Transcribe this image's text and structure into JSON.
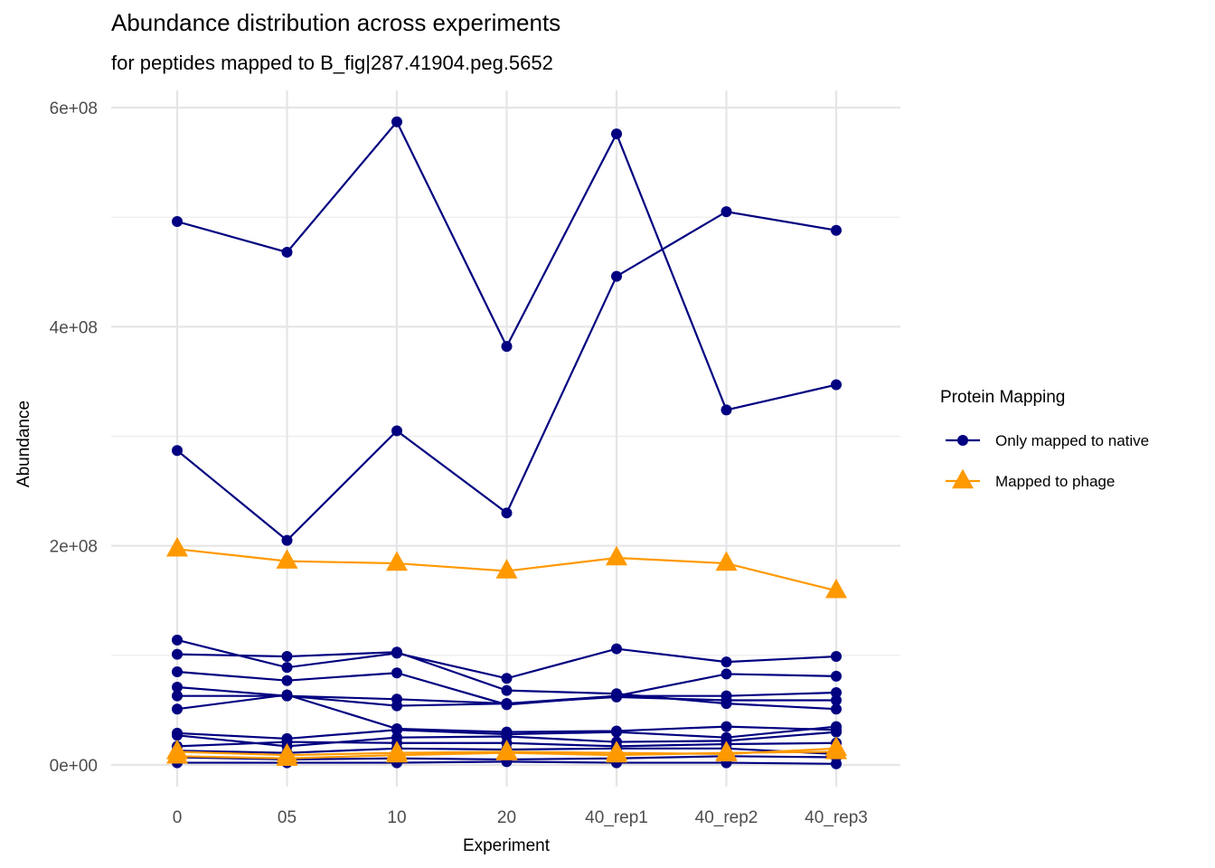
{
  "chart_data": {
    "type": "line",
    "title": "Abundance distribution across experiments",
    "subtitle": "for peptides mapped to B_fig|287.41904.peg.5652",
    "xlabel": "Experiment",
    "ylabel": "Abundance",
    "categories": [
      "0",
      "05",
      "10",
      "20",
      "40_rep1",
      "40_rep2",
      "40_rep3"
    ],
    "ylim": [
      -20000000,
      605000000
    ],
    "yticks": [
      0,
      200000000,
      400000000,
      600000000
    ],
    "ytick_labels": [
      "0e+00",
      "2e+08",
      "4e+08",
      "6e+08"
    ],
    "grid": true,
    "legend": {
      "title": "Protein Mapping",
      "position": "right",
      "entries": [
        {
          "label": "Only mapped to native",
          "color": "#000080",
          "shape": "circle"
        },
        {
          "label": "Mapped to phage",
          "color": "#FF9900",
          "shape": "triangle"
        }
      ]
    },
    "series": [
      {
        "group": "native",
        "values": [
          496000000,
          468000000,
          587000000,
          382000000,
          576000000,
          324000000,
          347000000
        ]
      },
      {
        "group": "native",
        "values": [
          287000000,
          205000000,
          305000000,
          230000000,
          446000000,
          505000000,
          488000000
        ]
      },
      {
        "group": "native",
        "values": [
          114000000,
          89000000,
          102000000,
          79000000,
          106000000,
          94000000,
          99000000
        ]
      },
      {
        "group": "native",
        "values": [
          101000000,
          99000000,
          103000000,
          68000000,
          65000000,
          56000000,
          51000000
        ]
      },
      {
        "group": "native",
        "values": [
          85000000,
          77000000,
          84000000,
          55000000,
          63000000,
          83000000,
          81000000
        ]
      },
      {
        "group": "native",
        "values": [
          71000000,
          63000000,
          54000000,
          56000000,
          63000000,
          63000000,
          66000000
        ]
      },
      {
        "group": "native",
        "values": [
          63000000,
          63000000,
          60000000,
          56000000,
          62000000,
          59000000,
          59000000
        ]
      },
      {
        "group": "native",
        "values": [
          51000000,
          64000000,
          33000000,
          30000000,
          31000000,
          35000000,
          32000000
        ]
      },
      {
        "group": "native",
        "values": [
          29000000,
          24000000,
          32000000,
          28000000,
          30000000,
          25000000,
          35000000
        ]
      },
      {
        "group": "native",
        "values": [
          27000000,
          17000000,
          25000000,
          26000000,
          21000000,
          22000000,
          30000000
        ]
      },
      {
        "group": "native",
        "values": [
          17000000,
          21000000,
          20000000,
          20000000,
          17000000,
          19000000,
          20000000
        ]
      },
      {
        "group": "native",
        "values": [
          13000000,
          11000000,
          15000000,
          14000000,
          15000000,
          15000000,
          10000000
        ]
      },
      {
        "group": "native",
        "values": [
          7000000,
          5000000,
          6000000,
          5000000,
          6000000,
          8000000,
          7000000
        ]
      },
      {
        "group": "native",
        "values": [
          2000000,
          2000000,
          2000000,
          3000000,
          2000000,
          2000000,
          1000000
        ]
      },
      {
        "group": "phage",
        "values": [
          197000000,
          186000000,
          184000000,
          177000000,
          189000000,
          184000000,
          159000000
        ]
      },
      {
        "group": "phage",
        "values": [
          12000000,
          9000000,
          11000000,
          12000000,
          11000000,
          10000000,
          15000000
        ]
      },
      {
        "group": "phage",
        "values": [
          8000000,
          6000000,
          9000000,
          11000000,
          9000000,
          11000000,
          12000000
        ]
      }
    ]
  }
}
